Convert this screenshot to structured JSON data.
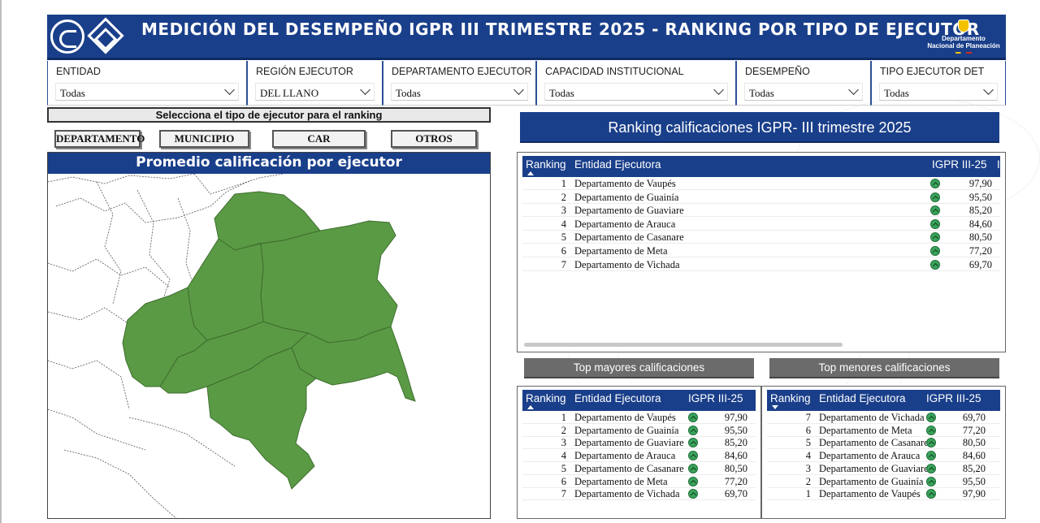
{
  "header": {
    "title": "MEDICIÓN DEL DESEMPEÑO IGPR III TRIMESTRE 2025 - RANKING POR TIPO DE EJECUTOR",
    "logo_line1": "Departamento",
    "logo_line2": "Nacional de Planeación"
  },
  "filters": [
    {
      "label": "ENTIDAD",
      "value": "Todas"
    },
    {
      "label": "REGIÓN EJECUTOR",
      "value": "DEL LLANO"
    },
    {
      "label": "DEPARTAMENTO EJECUTOR",
      "value": "Todas"
    },
    {
      "label": "CAPACIDAD INSTITUCIONAL",
      "value": "Todas"
    },
    {
      "label": "DESEMPEÑO",
      "value": "Todas"
    },
    {
      "label": "TIPO EJECUTOR DET",
      "value": "Todas"
    }
  ],
  "selector": {
    "title": "Selecciona el tipo de ejecutor para el ranking",
    "buttons": [
      "DEPARTAMENTO",
      "MUNICIPIO",
      "CAR",
      "OTROS"
    ]
  },
  "map": {
    "title": "Promedio calificación por ejecutor",
    "fill_color": "#5b9a45"
  },
  "ranking": {
    "title": "Ranking calificaciones IGPR- III trimestre 2025",
    "columns": [
      "Ranking",
      "Entidad Ejecutora",
      "IGPR III-25",
      "I"
    ],
    "rows": [
      {
        "rank": "1",
        "entity": "Departamento de Vaupés",
        "score": "97,90"
      },
      {
        "rank": "2",
        "entity": "Departamento de Guainía",
        "score": "95,50"
      },
      {
        "rank": "3",
        "entity": "Departamento de Guaviare",
        "score": "85,20"
      },
      {
        "rank": "4",
        "entity": "Departamento de Arauca",
        "score": "84,60"
      },
      {
        "rank": "5",
        "entity": "Departamento de Casanare",
        "score": "80,50"
      },
      {
        "rank": "6",
        "entity": "Departamento de Meta",
        "score": "77,20"
      },
      {
        "rank": "7",
        "entity": "Departamento de Vichada",
        "score": "69,70"
      }
    ]
  },
  "top_mayores": {
    "button": "Top mayores calificaciones",
    "columns": [
      "Ranking",
      "Entidad Ejecutora",
      "IGPR III-25"
    ],
    "rows": [
      {
        "rank": "1",
        "entity": "Departamento de Vaupés",
        "score": "97,90"
      },
      {
        "rank": "2",
        "entity": "Departamento de Guainía",
        "score": "95,50"
      },
      {
        "rank": "3",
        "entity": "Departamento de Guaviare",
        "score": "85,20"
      },
      {
        "rank": "4",
        "entity": "Departamento de Arauca",
        "score": "84,60"
      },
      {
        "rank": "5",
        "entity": "Departamento de Casanare",
        "score": "80,50"
      },
      {
        "rank": "6",
        "entity": "Departamento de Meta",
        "score": "77,20"
      },
      {
        "rank": "7",
        "entity": "Departamento de Vichada",
        "score": "69,70"
      }
    ]
  },
  "top_menores": {
    "button": "Top menores calificaciones",
    "columns": [
      "Ranking",
      "Entidad Ejecutora",
      "IGPR III-25"
    ],
    "rows": [
      {
        "rank": "7",
        "entity": "Departamento de Vichada",
        "score": "69,70"
      },
      {
        "rank": "6",
        "entity": "Departamento de Meta",
        "score": "77,20"
      },
      {
        "rank": "5",
        "entity": "Departamento de Casanare",
        "score": "80,50"
      },
      {
        "rank": "4",
        "entity": "Departamento de Arauca",
        "score": "84,60"
      },
      {
        "rank": "3",
        "entity": "Departamento de Guaviare",
        "score": "85,20"
      },
      {
        "rank": "2",
        "entity": "Departamento de Guainía",
        "score": "95,50"
      },
      {
        "rank": "1",
        "entity": "Departamento de Vaupés",
        "score": "97,90"
      }
    ]
  }
}
